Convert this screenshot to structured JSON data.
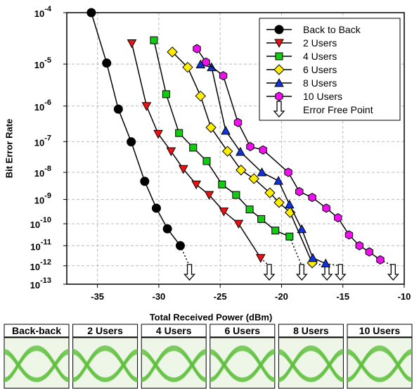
{
  "chart_data": {
    "type": "line",
    "x_label": "Total Received Power (dBm)",
    "y_label": "Bit Error Rate",
    "yscale": "ber",
    "xlim": [
      -37.5,
      -10
    ],
    "ylim": [
      1e-13,
      0.0001
    ],
    "xticks": [
      -35,
      -30,
      -25,
      -20,
      -15,
      -10
    ],
    "yticks": [
      {
        "value": 0.0001,
        "label": "10-4"
      },
      {
        "value": 1e-05,
        "label": "10-5"
      },
      {
        "value": 1e-06,
        "label": "10-6"
      },
      {
        "value": 1e-07,
        "label": "10-7"
      },
      {
        "value": 1e-08,
        "label": "10-8"
      },
      {
        "value": 1e-09,
        "label": "10-9"
      },
      {
        "value": 1e-10,
        "label": "10-10"
      },
      {
        "value": 1e-11,
        "label": "10-11"
      },
      {
        "value": 1e-12,
        "label": "10-12"
      },
      {
        "value": 1e-13,
        "label": "10-13"
      }
    ],
    "grid": true,
    "legend": "top-right",
    "error_free_label": "Error Free Point",
    "series": [
      {
        "name": "Back to Back",
        "color": "#000000",
        "marker": "circle",
        "x": [
          -35.5,
          -34.25,
          -33.3,
          -32.25,
          -31.15,
          -30.2,
          -29.3,
          -28.25
        ],
        "values": [
          0.0001,
          1.05e-05,
          8.3e-07,
          9.8e-08,
          4.8e-09,
          4.5e-10,
          6e-11,
          1e-11
        ],
        "error_free_x": -27.5
      },
      {
        "name": "2 Users",
        "color": "#ee1111",
        "marker": "triangle-down",
        "x": [
          -32.2,
          -31.0,
          -30.05,
          -29.0,
          -28.0,
          -26.95,
          -25.9,
          -24.7,
          -23.5,
          -21.7
        ],
        "values": [
          2.7e-05,
          1e-06,
          1.7e-07,
          5e-08,
          1.3e-08,
          3.7e-09,
          1.5e-09,
          3.3e-10,
          1e-10,
          2.5e-12
        ],
        "error_free_x": -21.0
      },
      {
        "name": "4 Users",
        "color": "#11cc11",
        "marker": "square",
        "x": [
          -30.4,
          -29.4,
          -28.35,
          -27.2,
          -26.1,
          -24.85,
          -23.7,
          -22.6,
          -21.65,
          -20.5,
          -19.35
        ],
        "values": [
          3.1e-05,
          2e-06,
          1.8e-07,
          6.5e-08,
          2.4e-08,
          3.7e-09,
          1.5e-09,
          4e-10,
          1.6e-10,
          5e-11,
          2.7e-11
        ],
        "error_free_x": -18.35
      },
      {
        "name": "6 Users",
        "color": "#ffee00",
        "marker": "diamond",
        "x": [
          -28.9,
          -27.65,
          -26.6,
          -25.75,
          -24.4,
          -23.3,
          -22.25,
          -20.95,
          -20.2,
          -19.3,
          -17.5
        ],
        "values": [
          1.8e-05,
          8.5e-06,
          1.8e-06,
          2.6e-07,
          5e-08,
          1.2e-08,
          6e-09,
          1.8e-09,
          7.6e-10,
          3e-10,
          1.4e-12
        ],
        "error_free_x": -16.3
      },
      {
        "name": "8 Users",
        "color": "#1133dd",
        "marker": "triangle-up",
        "x": [
          -26.6,
          -25.7,
          -24.55,
          -23.35,
          -21.6,
          -20.25,
          -19.35,
          -18.35,
          -17.45,
          -16.4
        ],
        "values": [
          9.8e-06,
          8.5e-06,
          2.1e-07,
          4.8e-08,
          1e-08,
          5e-09,
          6.3e-10,
          5.8e-11,
          2.5e-12,
          1.3e-12
        ],
        "error_free_x": -15.2
      },
      {
        "name": "10 Users",
        "color": "#ee11ee",
        "marker": "hexagon",
        "x": [
          -26.9,
          -26.15,
          -24.75,
          -23.55,
          -22.55,
          -21.5,
          -19.45,
          -18.55,
          -17.5,
          -16.35,
          -15.4,
          -14.5,
          -13.65,
          -12.85,
          -11.95
        ],
        "values": [
          2.1e-05,
          1.1e-05,
          5.5e-06,
          3.6e-07,
          7e-08,
          5.5e-08,
          1e-08,
          2e-09,
          1.2e-09,
          4.5e-10,
          1.8e-10,
          3.2e-11,
          1e-11,
          5e-12,
          2e-12
        ],
        "error_free_x": -10.9
      }
    ]
  },
  "eye_diagrams": {
    "labels": [
      "Back-back",
      "2 Users",
      "4 Users",
      "6 Users",
      "8 Users",
      "10 Users"
    ]
  }
}
